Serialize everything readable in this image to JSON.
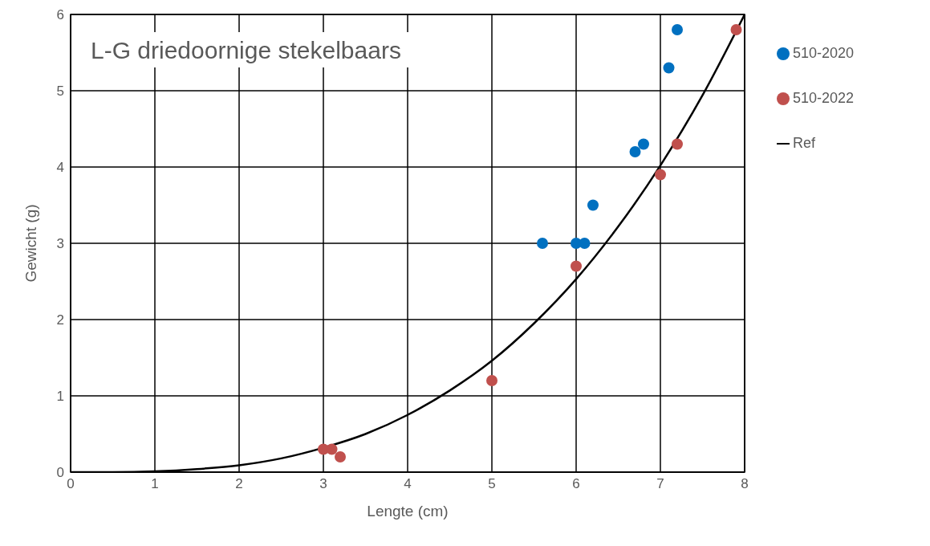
{
  "chart_data": {
    "type": "scatter",
    "title": "L-G driedoornige stekelbaars",
    "xlabel": "Lengte (cm)",
    "ylabel": "Gewicht (g)",
    "xlim": [
      0,
      8
    ],
    "xticks": [
      0,
      1,
      2,
      3,
      4,
      5,
      6,
      7,
      8
    ],
    "ylim": [
      0,
      6
    ],
    "yticks": [
      0,
      1,
      2,
      3,
      4,
      5,
      6
    ],
    "grid": true,
    "legend": "top right",
    "series": [
      {
        "name": "510-2020",
        "marker": "circle",
        "color": "#0070c0",
        "x": [
          5.6,
          6.0,
          6.1,
          6.2,
          6.7,
          6.8,
          7.1,
          7.2
        ],
        "values": [
          3.0,
          3.0,
          3.0,
          3.5,
          4.2,
          4.3,
          5.3,
          5.8
        ]
      },
      {
        "name": "510-2022",
        "marker": "circle",
        "color": "#c0504d",
        "x": [
          3.0,
          3.1,
          3.2,
          5.0,
          6.0,
          7.0,
          7.2,
          7.9
        ],
        "values": [
          0.3,
          0.3,
          0.2,
          1.2,
          2.7,
          3.9,
          4.3,
          5.8
        ]
      },
      {
        "name": "Ref",
        "type": "line",
        "marker": "none",
        "color": "#000000",
        "x": [
          0,
          0.5,
          1,
          1.5,
          2,
          2.5,
          3,
          3.5,
          4,
          4.5,
          5,
          5.5,
          6,
          6.5,
          7,
          7.5,
          8
        ],
        "values": [
          0,
          0,
          0.01,
          0.04,
          0.09,
          0.18,
          0.32,
          0.5,
          0.75,
          1.07,
          1.46,
          1.95,
          2.53,
          3.22,
          4.02,
          4.94,
          6.0
        ]
      }
    ]
  }
}
